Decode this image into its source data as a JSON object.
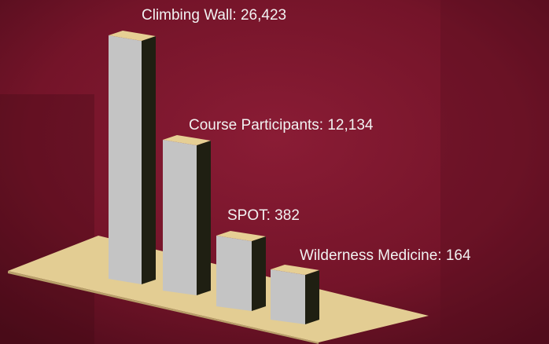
{
  "items": [
    {
      "label": "Climbing Wall: 26,423"
    },
    {
      "label": "Course Participants: 12,134"
    },
    {
      "label": "SPOT: 382"
    },
    {
      "label": "Wilderness Medicine: 164"
    }
  ]
}
